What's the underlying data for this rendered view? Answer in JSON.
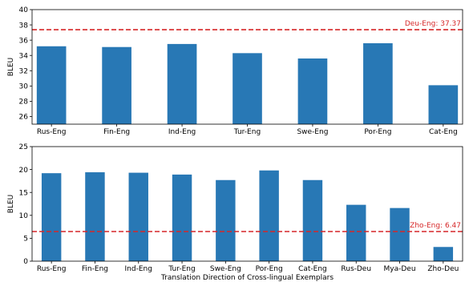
{
  "chart_data": [
    {
      "type": "bar",
      "ylabel": "BLEU",
      "xlabel": "",
      "ylim": [
        25,
        40
      ],
      "yticks": [
        26,
        28,
        30,
        32,
        34,
        36,
        38,
        40
      ],
      "categories": [
        "Rus-Eng",
        "Fin-Eng",
        "Ind-Eng",
        "Tur-Eng",
        "Swe-Eng",
        "Por-Eng",
        "Cat-Eng"
      ],
      "values": [
        35.2,
        35.1,
        35.5,
        34.3,
        33.6,
        35.6,
        30.1
      ],
      "bar_color": "#2878b5",
      "reference": {
        "label": "Deu-Eng: 37.37",
        "value": 37.37,
        "color": "#d62728",
        "style": "dashed"
      }
    },
    {
      "type": "bar",
      "ylabel": "BLEU",
      "xlabel": "Translation Direction of Cross-lingual Exemplars",
      "ylim": [
        0,
        25
      ],
      "yticks": [
        0,
        5,
        10,
        15,
        20,
        25
      ],
      "categories": [
        "Rus-Eng",
        "Fin-Eng",
        "Ind-Eng",
        "Tur-Eng",
        "Swe-Eng",
        "Por-Eng",
        "Cat-Eng",
        "Rus-Deu",
        "Mya-Deu",
        "Zho-Deu"
      ],
      "values": [
        19.2,
        19.4,
        19.3,
        18.9,
        17.7,
        19.8,
        17.7,
        12.3,
        11.6,
        3.1
      ],
      "bar_color": "#2878b5",
      "reference": {
        "label": "Zho-Eng: 6.47",
        "value": 6.47,
        "color": "#d62728",
        "style": "dashed"
      }
    }
  ]
}
